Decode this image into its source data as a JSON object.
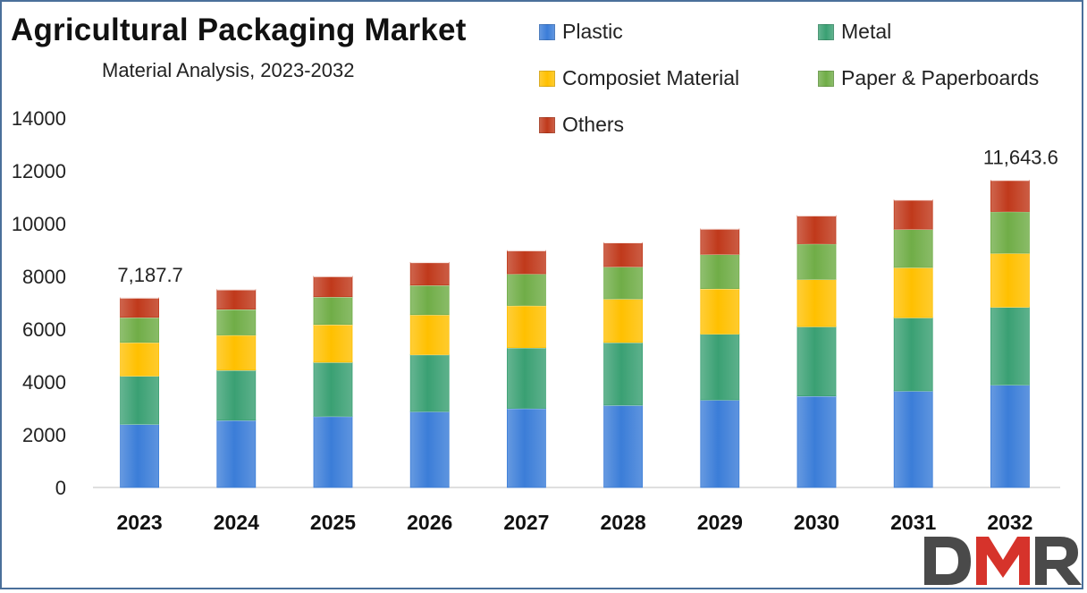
{
  "chart_data": {
    "type": "bar",
    "stacked": true,
    "title": "Agricultural Packaging Market",
    "subtitle": "Material Analysis, 2023-2032",
    "xlabel": "",
    "ylabel": "",
    "ylim": [
      0,
      14000
    ],
    "yticks": [
      "0",
      "2000",
      "4000",
      "6000",
      "8000",
      "10000",
      "12000",
      "14000"
    ],
    "categories": [
      "2023",
      "2024",
      "2025",
      "2026",
      "2027",
      "2028",
      "2029",
      "2030",
      "2031",
      "2032"
    ],
    "series": [
      {
        "name": "Plastic",
        "color": "#3b7dd8",
        "values": [
          2400,
          2550,
          2700,
          2880,
          3000,
          3120,
          3320,
          3470,
          3660,
          3890
        ]
      },
      {
        "name": "Metal",
        "color": "#3aa073",
        "values": [
          1830,
          1900,
          2050,
          2160,
          2300,
          2380,
          2500,
          2630,
          2780,
          2950
        ]
      },
      {
        "name": "Composiet Material",
        "color": "#ffc000",
        "values": [
          1270,
          1330,
          1430,
          1510,
          1600,
          1650,
          1720,
          1790,
          1900,
          2040
        ]
      },
      {
        "name": "Paper & Paperboards",
        "color": "#70ad47",
        "values": [
          950,
          980,
          1050,
          1120,
          1200,
          1220,
          1300,
          1350,
          1450,
          1580
        ]
      },
      {
        "name": "Others",
        "color": "#c0391b",
        "values": [
          737.7,
          740,
          770,
          860,
          880,
          910,
          960,
          1060,
          1110,
          1183.6
        ]
      }
    ],
    "data_labels": [
      {
        "category": "2023",
        "text": "7,187.7"
      },
      {
        "category": "2032",
        "text": "11,643.6"
      }
    ],
    "grid": false,
    "legend_position": "top-right"
  },
  "watermark": "DMR"
}
